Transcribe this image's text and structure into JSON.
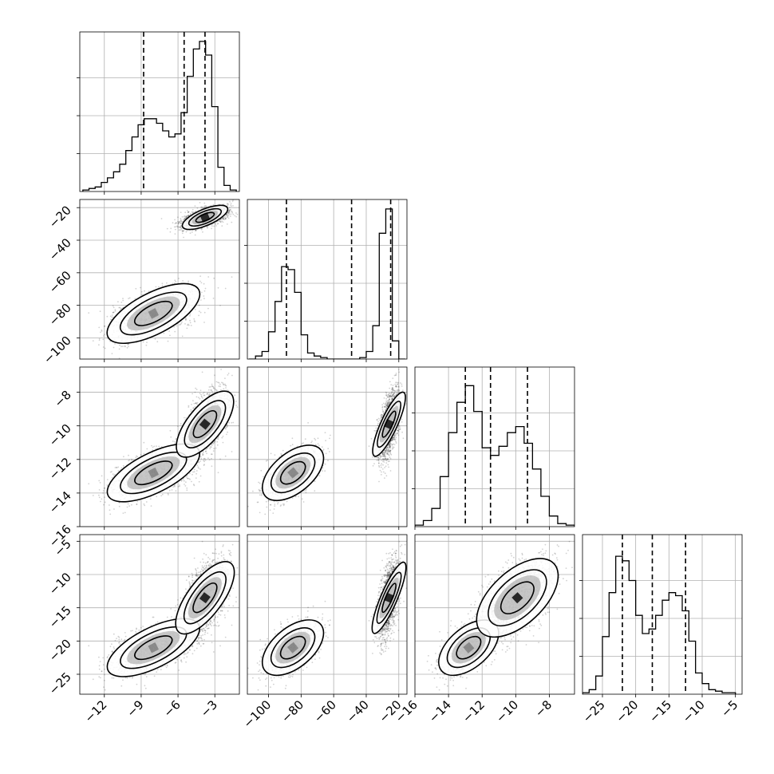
{
  "chart_data": {
    "type": "corner",
    "grid": true,
    "colors": {
      "hist": "#000000",
      "points": "#000000",
      "contour_line": "#000000",
      "grid": "#b0b0b0"
    },
    "params": [
      {
        "range": [
          -14,
          -1
        ],
        "ticks": [
          -12,
          -9,
          -6,
          -3
        ],
        "tick_labels": [
          "−12",
          "−9",
          "−6",
          "−3"
        ],
        "quantiles": [
          -8.8,
          -5.5,
          -3.8
        ]
      },
      {
        "range": [
          -113,
          -15
        ],
        "ticks": [
          -100,
          -80,
          -60,
          -40,
          -20
        ],
        "tick_labels": [
          "−100",
          "−80",
          "−60",
          "−40",
          "−20"
        ],
        "quantiles": [
          -89,
          -49,
          -25
        ]
      },
      {
        "range": [
          -16,
          -6.5
        ],
        "ticks": [
          -16,
          -14,
          -12,
          -10,
          -8
        ],
        "tick_labels": [
          "−16",
          "−14",
          "−12",
          "−10",
          "−8"
        ],
        "quantiles": [
          -13,
          -11.5,
          -9.3
        ]
      },
      {
        "range": [
          -28,
          -4
        ],
        "ticks": [
          -25,
          -20,
          -15,
          -10,
          -5
        ],
        "tick_labels": [
          "−25",
          "−20",
          "−15",
          "−10",
          "−5"
        ],
        "quantiles": [
          -22,
          -17.5,
          -12.5
        ]
      }
    ],
    "modes": [
      {
        "weight": 0.42,
        "mean": [
          -8.0,
          -85,
          -12.8,
          -21.0
        ],
        "sd": [
          1.8,
          8.0,
          0.75,
          1.9
        ]
      },
      {
        "weight": 0.58,
        "mean": [
          -3.8,
          -26,
          -9.9,
          -13.5
        ],
        "sd": [
          0.9,
          3.2,
          1.0,
          2.8
        ]
      }
    ],
    "histograms": [
      {
        "x": [
          -13.5,
          -13.0,
          -12.5,
          -12.0,
          -11.5,
          -11.0,
          -10.5,
          -10.0,
          -9.5,
          -9.0,
          -8.5,
          -8.0,
          -7.5,
          -7.0,
          -6.5,
          -6.0,
          -5.5,
          -5.0,
          -4.5,
          -4.0,
          -3.5,
          -3.0,
          -2.5,
          -2.0,
          -1.5
        ],
        "y": [
          0.01,
          0.02,
          0.03,
          0.06,
          0.09,
          0.13,
          0.18,
          0.27,
          0.36,
          0.44,
          0.48,
          0.48,
          0.45,
          0.4,
          0.36,
          0.38,
          0.52,
          0.76,
          0.94,
          0.99,
          0.9,
          0.56,
          0.16,
          0.04,
          0.01
        ]
      },
      {
        "x": [
          -110,
          -106,
          -102,
          -98,
          -94,
          -90,
          -86,
          -82,
          -78,
          -74,
          -70,
          -66,
          -62,
          -58,
          -54,
          -50,
          -46,
          -42,
          -38,
          -34,
          -30,
          -26,
          -22,
          -18
        ],
        "y": [
          0.0,
          0.02,
          0.05,
          0.18,
          0.38,
          0.61,
          0.59,
          0.44,
          0.16,
          0.04,
          0.02,
          0.01,
          0.0,
          0.0,
          0.0,
          0.0,
          0.0,
          0.01,
          0.05,
          0.22,
          0.83,
          0.99,
          0.12,
          0.0
        ]
      },
      {
        "x": [
          -15.75,
          -15.25,
          -14.75,
          -14.25,
          -13.75,
          -13.25,
          -12.75,
          -12.25,
          -11.75,
          -11.25,
          -10.75,
          -10.25,
          -9.75,
          -9.25,
          -8.75,
          -8.25,
          -7.75,
          -7.25,
          -6.75
        ],
        "y": [
          0.01,
          0.04,
          0.12,
          0.33,
          0.62,
          0.82,
          0.93,
          0.76,
          0.52,
          0.47,
          0.53,
          0.62,
          0.66,
          0.55,
          0.38,
          0.2,
          0.07,
          0.02,
          0.01
        ]
      },
      {
        "x": [
          -27.5,
          -26.5,
          -25.5,
          -24.5,
          -23.5,
          -22.5,
          -21.5,
          -20.5,
          -19.5,
          -18.5,
          -17.5,
          -16.5,
          -15.5,
          -14.5,
          -13.5,
          -12.5,
          -11.5,
          -10.5,
          -9.5,
          -8.5,
          -7.5,
          -6.5,
          -5.5
        ],
        "y": [
          0.01,
          0.03,
          0.12,
          0.38,
          0.67,
          0.91,
          0.88,
          0.75,
          0.52,
          0.4,
          0.43,
          0.52,
          0.62,
          0.67,
          0.65,
          0.55,
          0.35,
          0.14,
          0.07,
          0.03,
          0.02,
          0.01,
          0.01
        ]
      }
    ]
  }
}
